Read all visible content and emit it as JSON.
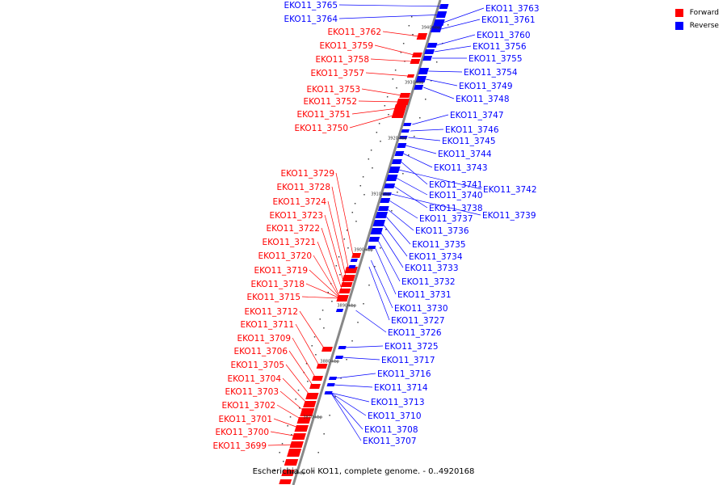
{
  "caption": "Escherichia coli KO11, complete genome. - 0..4920168",
  "legend": [
    {
      "label": "Forward",
      "color": "#ff0000"
    },
    {
      "label": "Reverse",
      "color": "#0000ff"
    }
  ],
  "colors": {
    "forward": "#ff0000",
    "reverse": "#0000ff",
    "backbone": "#888888",
    "tick_mark": "#222222"
  },
  "ticks": [
    "3940 kbp",
    "3930 kbp",
    "3920 kbp",
    "3910 kbp",
    "3900 kbp",
    "3890 kbp",
    "3880 kbp",
    "3870 kbp",
    "3860 kbp"
  ],
  "forward_genes": [
    "EKO11_3762",
    "EKO11_3759",
    "EKO11_3758",
    "EKO11_3757",
    "EKO11_3753",
    "EKO11_3752",
    "EKO11_3751",
    "EKO11_3750",
    "EKO11_3729",
    "EKO11_3728",
    "EKO11_3724",
    "EKO11_3723",
    "EKO11_3722",
    "EKO11_3721",
    "EKO11_3720",
    "EKO11_3719",
    "EKO11_3718",
    "EKO11_3715",
    "EKO11_3712",
    "EKO11_3711",
    "EKO11_3709",
    "EKO11_3706",
    "EKO11_3705",
    "EKO11_3704",
    "EKO11_3703",
    "EKO11_3702",
    "EKO11_3701",
    "EKO11_3700",
    "EKO11_3699"
  ],
  "reverse_genes": [
    "EKO11_3765",
    "EKO11_3764",
    "EKO11_3763",
    "EKO11_3761",
    "EKO11_3760",
    "EKO11_3756",
    "EKO11_3755",
    "EKO11_3754",
    "EKO11_3749",
    "EKO11_3748",
    "EKO11_3747",
    "EKO11_3746",
    "EKO11_3745",
    "EKO11_3744",
    "EKO11_3743",
    "EKO11_3741",
    "EKO11_3742",
    "EKO11_3740",
    "EKO11_3738",
    "EKO11_3739",
    "EKO11_3737",
    "EKO11_3736",
    "EKO11_3735",
    "EKO11_3734",
    "EKO11_3733",
    "EKO11_3732",
    "EKO11_3731",
    "EKO11_3730",
    "EKO11_3727",
    "EKO11_3726",
    "EKO11_3725",
    "EKO11_3717",
    "EKO11_3716",
    "EKO11_3714",
    "EKO11_3713",
    "EKO11_3710",
    "EKO11_3708",
    "EKO11_3707"
  ]
}
